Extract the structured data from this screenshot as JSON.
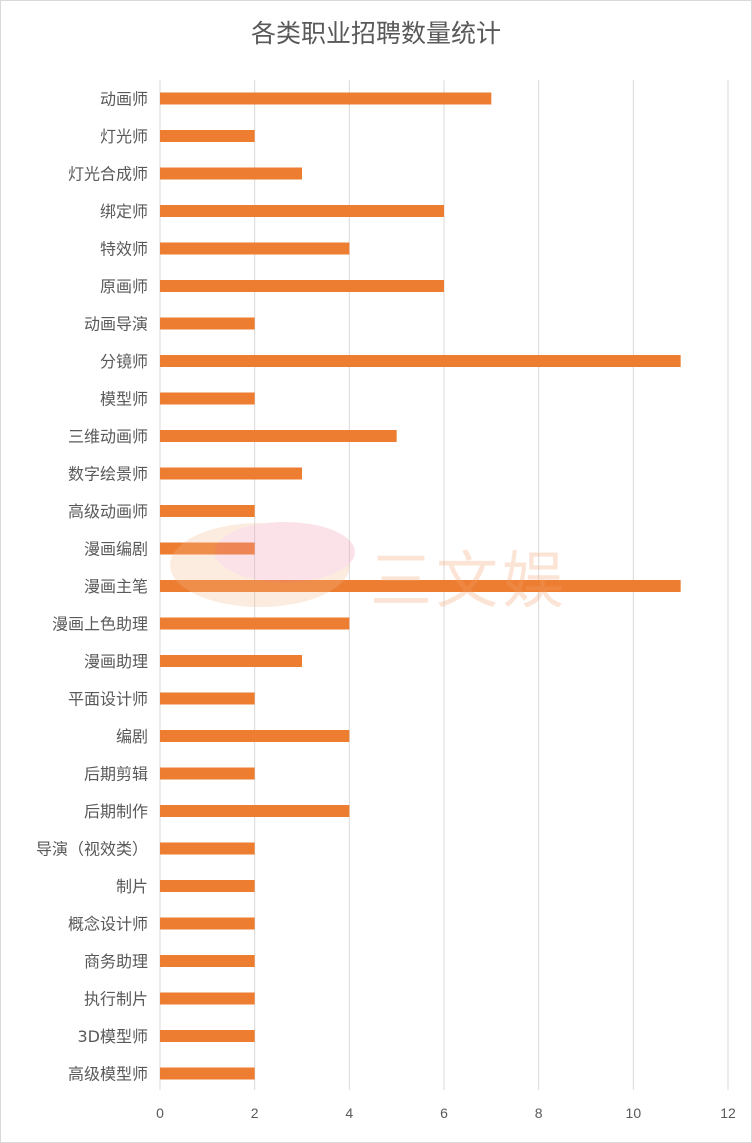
{
  "chart_data": {
    "type": "bar",
    "orientation": "horizontal",
    "title": "各类职业招聘数量统计",
    "categories": [
      "动画师",
      "灯光师",
      "灯光合成师",
      "绑定师",
      "特效师",
      "原画师",
      "动画导演",
      "分镜师",
      "模型师",
      "三维动画师",
      "数字绘景师",
      "高级动画师",
      "漫画编剧",
      "漫画主笔",
      "漫画上色助理",
      "漫画助理",
      "平面设计师",
      "编剧",
      "后期剪辑",
      "后期制作",
      "导演（视效类）",
      "制片",
      "概念设计师",
      "商务助理",
      "执行制片",
      "3D模型师",
      "高级模型师"
    ],
    "values": [
      7,
      2,
      3,
      6,
      4,
      6,
      2,
      11,
      2,
      5,
      3,
      2,
      2,
      11,
      4,
      3,
      2,
      4,
      2,
      4,
      2,
      2,
      2,
      2,
      2,
      2,
      2
    ],
    "xlim": [
      0,
      12
    ],
    "xticks": [
      0,
      2,
      4,
      6,
      8,
      10,
      12
    ],
    "grid": true,
    "colors": {
      "bar": "#ed7d31",
      "grid": "#d9d9d9",
      "text": "#595959"
    }
  },
  "watermark": {
    "text": "三文娱"
  }
}
